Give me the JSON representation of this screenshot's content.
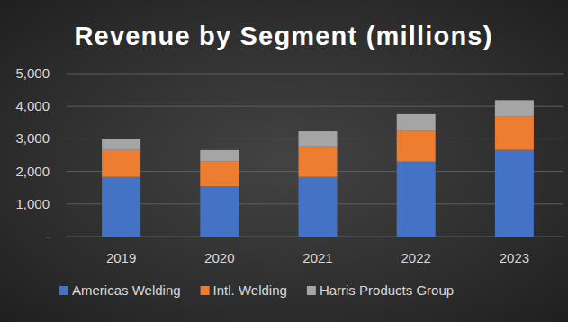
{
  "chart_data": {
    "type": "bar",
    "title": "Revenue by Segment (millions)",
    "categories": [
      "2019",
      "2020",
      "2021",
      "2022",
      "2023"
    ],
    "series": [
      {
        "name": "Americas Welding",
        "color": "#4472c4",
        "values": [
          1830,
          1540,
          1830,
          2300,
          2660
        ]
      },
      {
        "name": "Intl. Welding",
        "color": "#ed7d31",
        "values": [
          830,
          760,
          940,
          940,
          1040
        ]
      },
      {
        "name": "Harris Products Group",
        "color": "#a5a5a5",
        "values": [
          330,
          355,
          460,
          520,
          490
        ]
      }
    ],
    "ylim": [
      0,
      5000
    ],
    "yticks": [
      {
        "value": 0,
        "label": "-"
      },
      {
        "value": 1000,
        "label": "1,000"
      },
      {
        "value": 2000,
        "label": "2,000"
      },
      {
        "value": 3000,
        "label": "3,000"
      },
      {
        "value": 4000,
        "label": "4,000"
      },
      {
        "value": 5000,
        "label": "5,000"
      }
    ],
    "stacked": true,
    "grid": true,
    "legend": "bottom"
  }
}
